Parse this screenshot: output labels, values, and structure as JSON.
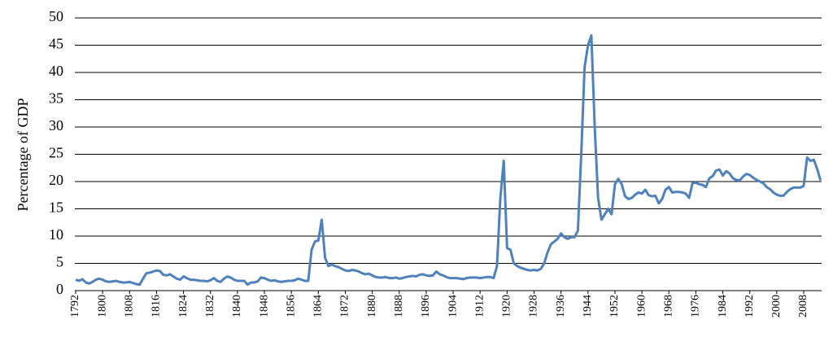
{
  "chart_data": {
    "type": "line",
    "y_label": "Percentage of GDP",
    "x": [
      1792,
      1793,
      1794,
      1795,
      1796,
      1797,
      1798,
      1799,
      1800,
      1801,
      1802,
      1803,
      1804,
      1805,
      1806,
      1807,
      1808,
      1809,
      1810,
      1811,
      1812,
      1813,
      1814,
      1815,
      1816,
      1817,
      1818,
      1819,
      1820,
      1821,
      1822,
      1823,
      1824,
      1825,
      1826,
      1827,
      1828,
      1829,
      1830,
      1831,
      1832,
      1833,
      1834,
      1835,
      1836,
      1837,
      1838,
      1839,
      1840,
      1841,
      1842,
      1843,
      1844,
      1845,
      1846,
      1847,
      1848,
      1849,
      1850,
      1851,
      1852,
      1853,
      1854,
      1855,
      1856,
      1857,
      1858,
      1859,
      1860,
      1861,
      1862,
      1863,
      1864,
      1865,
      1866,
      1867,
      1868,
      1869,
      1870,
      1871,
      1872,
      1873,
      1874,
      1875,
      1876,
      1877,
      1878,
      1879,
      1880,
      1881,
      1882,
      1883,
      1884,
      1885,
      1886,
      1887,
      1888,
      1889,
      1890,
      1891,
      1892,
      1893,
      1894,
      1895,
      1896,
      1897,
      1898,
      1899,
      1900,
      1901,
      1902,
      1903,
      1904,
      1905,
      1906,
      1907,
      1908,
      1909,
      1910,
      1911,
      1912,
      1913,
      1914,
      1915,
      1916,
      1917,
      1918,
      1919,
      1920,
      1921,
      1922,
      1923,
      1924,
      1925,
      1926,
      1927,
      1928,
      1929,
      1930,
      1931,
      1932,
      1933,
      1934,
      1935,
      1936,
      1937,
      1938,
      1939,
      1940,
      1941,
      1942,
      1943,
      1944,
      1945,
      1946,
      1947,
      1948,
      1949,
      1950,
      1951,
      1952,
      1953,
      1954,
      1955,
      1956,
      1957,
      1958,
      1959,
      1960,
      1961,
      1962,
      1963,
      1964,
      1965,
      1966,
      1967,
      1968,
      1969,
      1970,
      1971,
      1972,
      1973,
      1974,
      1975,
      1976,
      1977,
      1978,
      1979,
      1980,
      1981,
      1982,
      1983,
      1984,
      1985,
      1986,
      1987,
      1988,
      1989,
      1990,
      1991,
      1992,
      1993,
      1994,
      1995,
      1996,
      1997,
      1998,
      1999,
      2000,
      2001,
      2002,
      2003,
      2004,
      2005,
      2006,
      2007,
      2008,
      2009,
      2010,
      2011,
      2012,
      2013
    ],
    "series": [
      {
        "color": "#4f81bd",
        "values": [
          2.0,
          1.8,
          2.1,
          1.5,
          1.3,
          1.6,
          2.0,
          2.2,
          2.0,
          1.7,
          1.6,
          1.7,
          1.8,
          1.6,
          1.5,
          1.5,
          1.6,
          1.4,
          1.2,
          1.1,
          2.2,
          3.2,
          3.3,
          3.5,
          3.7,
          3.6,
          2.9,
          2.8,
          3.0,
          2.6,
          2.2,
          2.0,
          2.6,
          2.3,
          2.0,
          2.0,
          1.9,
          1.8,
          1.8,
          1.7,
          1.9,
          2.3,
          1.8,
          1.6,
          2.2,
          2.6,
          2.4,
          2.0,
          1.8,
          1.8,
          1.8,
          1.1,
          1.5,
          1.5,
          1.7,
          2.4,
          2.3,
          2.0,
          1.8,
          1.9,
          1.7,
          1.6,
          1.7,
          1.8,
          1.8,
          1.9,
          2.2,
          2.0,
          1.8,
          1.8,
          7.5,
          9.0,
          9.2,
          13.0,
          6.0,
          4.5,
          4.8,
          4.5,
          4.3,
          4.0,
          3.7,
          3.6,
          3.8,
          3.7,
          3.5,
          3.2,
          3.0,
          3.1,
          2.8,
          2.5,
          2.4,
          2.4,
          2.5,
          2.3,
          2.3,
          2.4,
          2.2,
          2.3,
          2.5,
          2.6,
          2.7,
          2.6,
          2.9,
          3.0,
          2.8,
          2.7,
          2.8,
          3.5,
          3.0,
          2.8,
          2.5,
          2.3,
          2.3,
          2.3,
          2.2,
          2.1,
          2.3,
          2.4,
          2.4,
          2.4,
          2.3,
          2.4,
          2.5,
          2.5,
          2.3,
          4.5,
          17.0,
          23.8,
          7.8,
          7.5,
          5.0,
          4.5,
          4.2,
          4.0,
          3.8,
          3.7,
          3.8,
          3.7,
          4.0,
          5.0,
          7.0,
          8.5,
          9.0,
          9.5,
          10.5,
          9.8,
          9.5,
          9.8,
          9.8,
          11.0,
          25.0,
          41.0,
          45.0,
          46.8,
          30.0,
          17.0,
          13.0,
          14.0,
          15.0,
          14.0,
          19.5,
          20.5,
          19.5,
          17.3,
          16.8,
          17.0,
          17.6,
          18.0,
          17.8,
          18.5,
          17.5,
          17.3,
          17.4,
          16.0,
          16.8,
          18.5,
          19.0,
          18.0,
          18.1,
          18.1,
          18.0,
          17.8,
          17.0,
          19.7,
          19.8,
          19.5,
          19.4,
          19.0,
          20.6,
          21.0,
          22.0,
          22.2,
          21.1,
          21.9,
          21.5,
          20.6,
          20.3,
          20.2,
          20.9,
          21.4,
          21.2,
          20.7,
          20.3,
          20.0,
          19.7,
          19.0,
          18.6,
          18.0,
          17.6,
          17.4,
          17.4,
          18.1,
          18.6,
          18.9,
          18.9,
          18.9,
          19.2,
          24.4,
          23.8,
          24.0,
          22.3,
          20.2
        ]
      }
    ],
    "xlim": [
      1792,
      2013
    ],
    "xticks": [
      1792,
      1800,
      1808,
      1816,
      1824,
      1832,
      1840,
      1848,
      1856,
      1864,
      1872,
      1880,
      1888,
      1896,
      1904,
      1912,
      1920,
      1928,
      1936,
      1944,
      1952,
      1960,
      1968,
      1976,
      1984,
      1992,
      2000,
      2008
    ],
    "ylim": [
      0,
      50
    ],
    "yticks": [
      0,
      5,
      10,
      15,
      20,
      25,
      30,
      35,
      40,
      45,
      50
    ],
    "grid": true
  }
}
